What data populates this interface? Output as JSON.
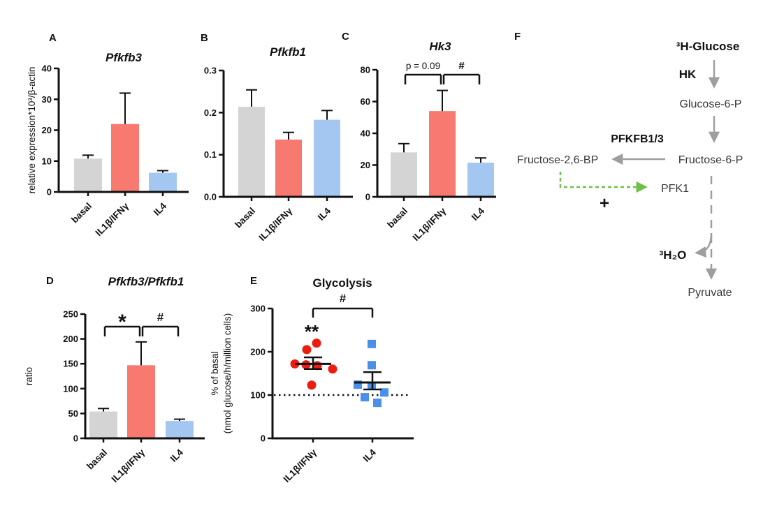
{
  "chart_data": [
    {
      "panel": "A",
      "type": "bar",
      "title": "Pfkfb3",
      "title_italic": true,
      "ylabel": "relative expression*10³/β-actin",
      "categories": [
        "basal",
        "IL1β/IFNγ",
        "IL4"
      ],
      "values": [
        10.8,
        22,
        6.2
      ],
      "errors_upper": [
        1.1,
        10,
        0.7
      ],
      "ylim": [
        0,
        40
      ],
      "yticks": [
        "0",
        "10",
        "20",
        "30",
        "40"
      ],
      "bar_colors": [
        "#d4d4d4",
        "#f8796f",
        "#a3c7f1"
      ],
      "annotations": []
    },
    {
      "panel": "B",
      "type": "bar",
      "title": "Pfkfb1",
      "title_italic": true,
      "ylabel": "",
      "categories": [
        "basal",
        "IL1β/IFNγ",
        "IL4"
      ],
      "values": [
        0.214,
        0.136,
        0.183
      ],
      "errors_upper": [
        0.04,
        0.017,
        0.022
      ],
      "ylim": [
        0,
        0.3
      ],
      "yticks": [
        "0.0",
        "0.1",
        "0.2",
        "0.3"
      ],
      "bar_colors": [
        "#d4d4d4",
        "#f8796f",
        "#a3c7f1"
      ],
      "annotations": []
    },
    {
      "panel": "C",
      "type": "bar",
      "title": "Hk3",
      "title_italic": true,
      "ylabel": "",
      "categories": [
        "basal",
        "IL1β/IFNγ",
        "IL4"
      ],
      "values": [
        28,
        54,
        21.5
      ],
      "errors_upper": [
        5.5,
        13,
        3
      ],
      "ylim": [
        0,
        80
      ],
      "yticks": [
        "0",
        "20",
        "40",
        "60",
        "80"
      ],
      "bar_colors": [
        "#d4d4d4",
        "#f8796f",
        "#a3c7f1"
      ],
      "annotations": [
        {
          "text": "p = 0.09",
          "from": 0,
          "to": 1,
          "bold": false,
          "size": 13.5
        },
        {
          "text": "#",
          "from": 1,
          "to": 2,
          "bold": true,
          "size": 15
        }
      ]
    },
    {
      "panel": "D",
      "type": "bar",
      "title": "Pfkfb3/Pfkfb1",
      "title_italic": true,
      "ylabel": "ratio",
      "categories": [
        "basal",
        "IL1β/IFNγ",
        "IL4"
      ],
      "values": [
        54,
        147,
        35
      ],
      "errors_upper": [
        6,
        47,
        3.5
      ],
      "ylim": [
        0,
        250
      ],
      "yticks": [
        "0",
        "50",
        "100",
        "150",
        "200",
        "250"
      ],
      "bar_colors": [
        "#d4d4d4",
        "#f8796f",
        "#a3c7f1"
      ],
      "annotations": [
        {
          "text": "*",
          "from": 0,
          "to": 1,
          "bold": true,
          "size": 30
        },
        {
          "text": "#",
          "from": 1,
          "to": 2,
          "bold": true,
          "size": 17
        }
      ]
    },
    {
      "panel": "E",
      "type": "scatter",
      "title": "Glycolysis",
      "title_italic": false,
      "ylabel_lines": [
        "% of basal",
        "(nmol glucose/h/million cells)"
      ],
      "categories": [
        "IL1β/IFNγ",
        "IL4"
      ],
      "baseline": 100,
      "ylim": [
        0,
        300
      ],
      "yticks": [
        "0",
        "100",
        "200",
        "300"
      ],
      "series": [
        {
          "name": "IL1β/IFNγ",
          "marker": "circle",
          "color": "#ee1c0f",
          "values": [
            220,
            205,
            172,
            170,
            168,
            160,
            123
          ],
          "jitter": [
            5,
            -9,
            -26,
            -10,
            6,
            28,
            -2
          ],
          "mean": 172,
          "err_upper": 187,
          "err_lower": 160,
          "sig_label": "**"
        },
        {
          "name": "IL4",
          "marker": "square",
          "color": "#4a90e8",
          "values": [
            218,
            169,
            124,
            121,
            106,
            95,
            82
          ],
          "jitter": [
            -1,
            -1,
            -21,
            -1,
            17,
            -11,
            7
          ],
          "mean": 129,
          "err_upper": 153,
          "err_lower": 113,
          "sig_label": ""
        }
      ],
      "annotations": [
        {
          "text": "#",
          "from": 0,
          "to": 1,
          "bold": true,
          "size": 17
        }
      ]
    }
  ],
  "diagram": {
    "panel": "F",
    "nodes": {
      "substrate": "³H-Glucose",
      "enzyme1": "HK",
      "g6p": "Glucose-6-P",
      "enzyme2": "PFKFB1/3",
      "f26bp": "Fructose-2,6-BP",
      "f6p": "Fructose-6-P",
      "pfk1": "PFK1",
      "plus": "+",
      "h2o": "³H₂O",
      "pyruvate": "Pyruvate"
    },
    "colors": {
      "arrow": "#9e9e9e",
      "activation": "#6cbf47",
      "metabolite_text": "#383838",
      "enzyme_text": "#111111"
    }
  }
}
